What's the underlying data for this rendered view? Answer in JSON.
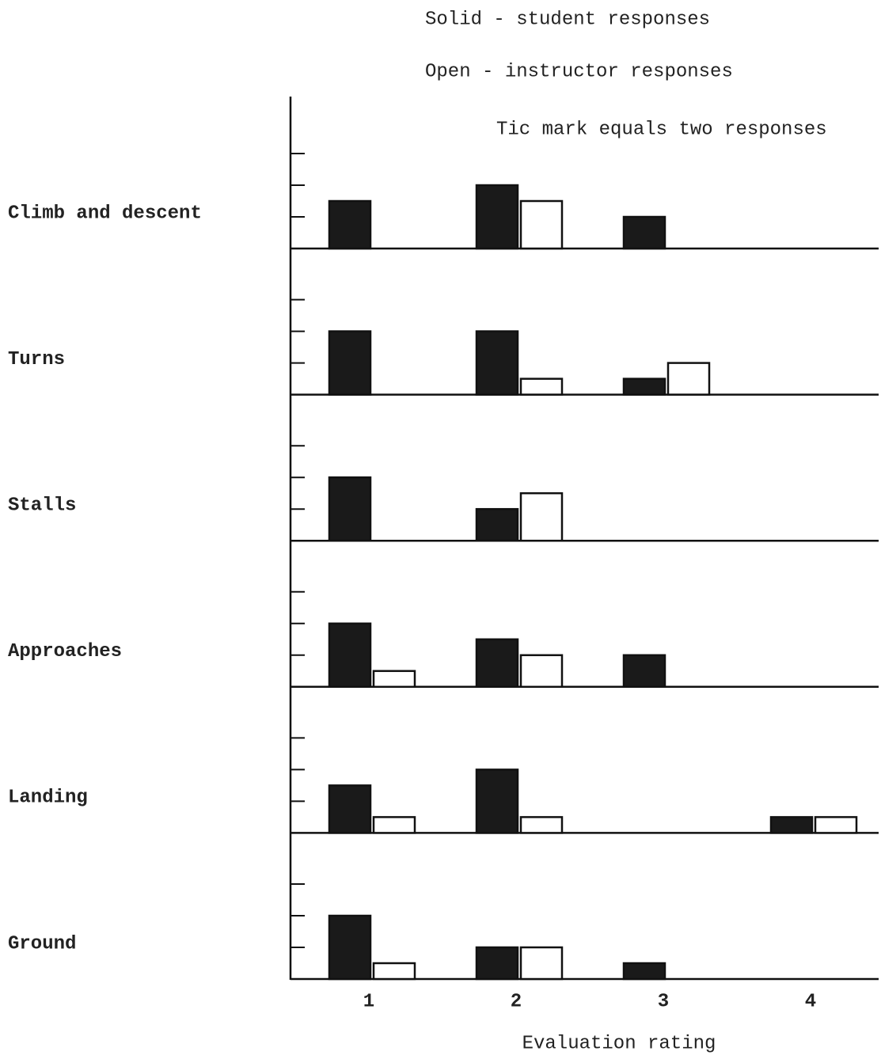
{
  "chart_data": {
    "type": "bar",
    "legend": [
      "Solid - student responses",
      "Open - instructor responses"
    ],
    "note": "Tic mark equals two responses",
    "xlabel": "Evaluation rating",
    "categories": [
      "1",
      "2",
      "3",
      "4"
    ],
    "series": [
      {
        "name": "Solid - student responses",
        "color": "#1a1a1a"
      },
      {
        "name": "Open - instructor responses",
        "color": "#ffffff"
      }
    ],
    "ylim": [
      0,
      9
    ],
    "yticks": [
      2,
      4,
      6
    ],
    "panels": [
      {
        "label": "Climb and descent",
        "values": [
          [
            3,
            4,
            2,
            0
          ],
          [
            0,
            3,
            0,
            0
          ]
        ]
      },
      {
        "label": "Turns",
        "values": [
          [
            4,
            4,
            1,
            0
          ],
          [
            0,
            1,
            2,
            0
          ]
        ]
      },
      {
        "label": "Stalls",
        "values": [
          [
            4,
            2,
            0,
            0
          ],
          [
            0,
            3,
            0,
            0
          ]
        ]
      },
      {
        "label": "Approaches",
        "values": [
          [
            4,
            3,
            2,
            0
          ],
          [
            1,
            2,
            0,
            0
          ]
        ]
      },
      {
        "label": "Landing",
        "values": [
          [
            3,
            4,
            0,
            1
          ],
          [
            1,
            1,
            0,
            1
          ]
        ]
      },
      {
        "label": "Ground",
        "values": [
          [
            4,
            2,
            1,
            0
          ],
          [
            1,
            2,
            0,
            0
          ]
        ]
      }
    ]
  }
}
